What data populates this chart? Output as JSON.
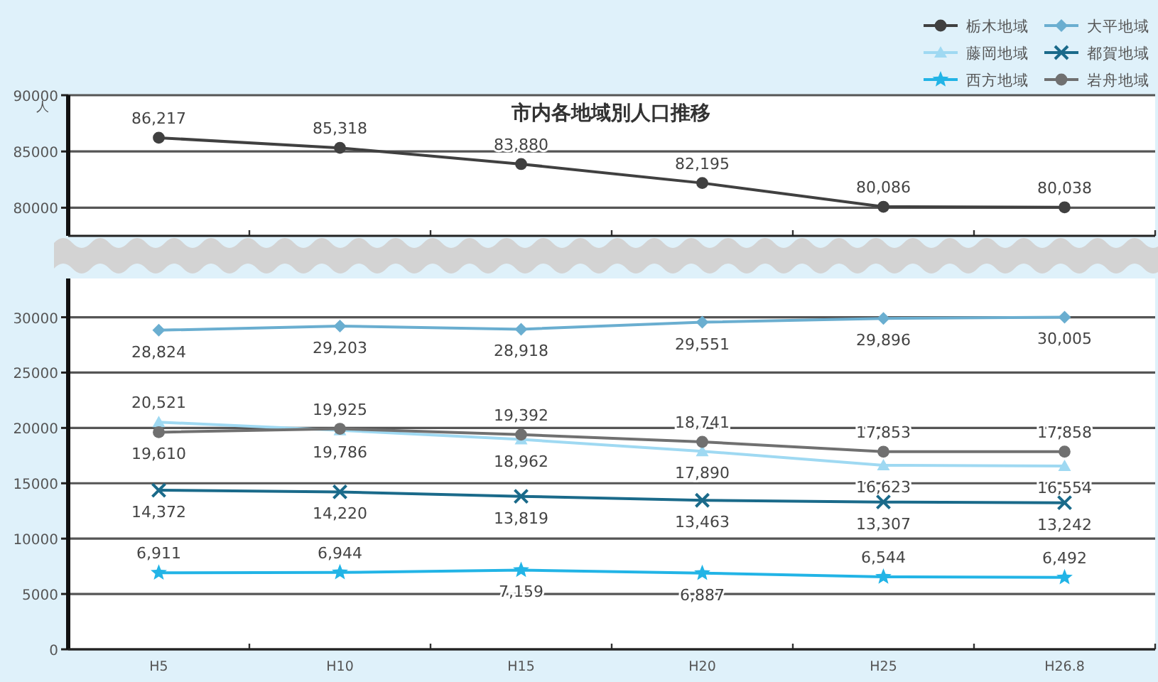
{
  "chart_data": [
    {
      "type": "line",
      "title": "市内各地域別人口推移",
      "ylabel": "人",
      "categories": [
        null,
        null,
        null,
        null,
        null,
        null
      ],
      "series": [
        {
          "name": "栃木地域",
          "color": "#404040",
          "marker": "circle",
          "values": [
            86217,
            85318,
            83880,
            82195,
            80086,
            80038
          ],
          "value_labels": [
            "86,217",
            "85,318",
            "83,880",
            "82,195",
            "80,086",
            "80,038"
          ]
        }
      ],
      "ylim": [
        77500,
        90000
      ],
      "yticks": [
        80000,
        85000,
        90000
      ],
      "tick_labels": "y",
      "grid": "y",
      "legend": "top right"
    },
    {
      "type": "line",
      "categories": [
        "H5",
        "H10",
        "H15",
        "H20",
        "H25",
        "H26.8"
      ],
      "series": [
        {
          "name": "大平地域",
          "color": "#6aaed0",
          "marker": "diamond",
          "values": [
            28824,
            29203,
            28918,
            29551,
            29896,
            30005
          ],
          "value_labels": [
            "28,824",
            "29,203",
            "28,918",
            "29,551",
            "29,896",
            "30,005"
          ]
        },
        {
          "name": "藤岡地域",
          "color": "#9fd9f2",
          "marker": "triangle",
          "values": [
            20521,
            19786,
            18962,
            17890,
            16623,
            16554
          ],
          "value_labels": [
            "20,521",
            "19,786",
            "18,962",
            "17,890",
            "16,623",
            "16,554"
          ]
        },
        {
          "name": "都賀地域",
          "color": "#1a6a8a",
          "marker": "cross",
          "values": [
            14372,
            14220,
            13819,
            13463,
            13307,
            13242
          ],
          "value_labels": [
            "14,372",
            "14,220",
            "13,819",
            "13,463",
            "13,307",
            "13,242"
          ]
        },
        {
          "name": "西方地域",
          "color": "#22b4e6",
          "marker": "star",
          "values": [
            6911,
            6944,
            7159,
            6887,
            6544,
            6492
          ],
          "value_labels": [
            "6,911",
            "6,944",
            "7,159",
            "6,887",
            "6,544",
            "6,492"
          ]
        },
        {
          "name": "岩舟地域",
          "color": "#707070",
          "marker": "circle",
          "values": [
            19610,
            19925,
            19392,
            18741,
            17853,
            17858
          ],
          "value_labels": [
            "19,610",
            "19,925",
            "19,392",
            "18,741",
            "17,853",
            "17,858"
          ]
        }
      ],
      "ylim": [
        0,
        33500
      ],
      "yticks": [
        0,
        5000,
        10000,
        15000,
        20000,
        25000,
        30000
      ],
      "grid": "y",
      "legend": "top right"
    }
  ]
}
